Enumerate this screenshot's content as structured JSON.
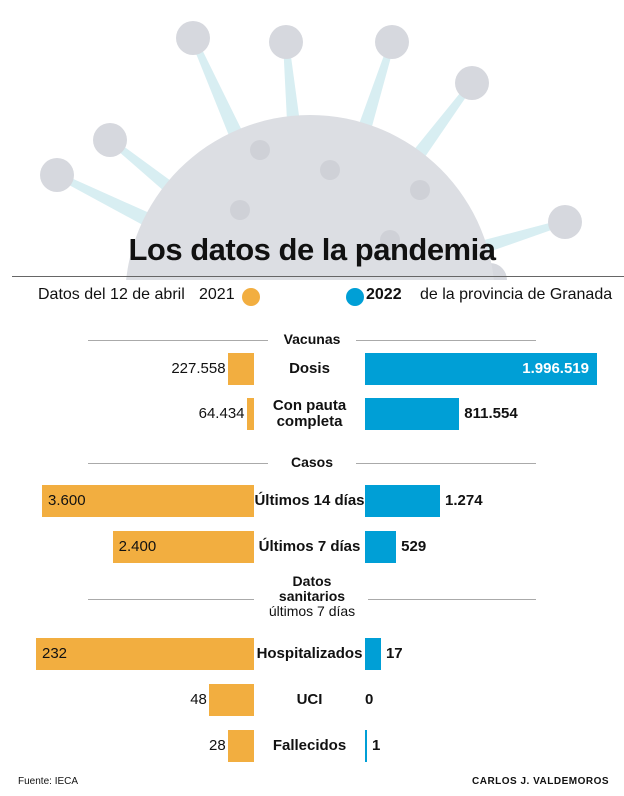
{
  "title": "Los datos de la pandemia",
  "legend": {
    "intro": "Datos del 12 de abril",
    "y2021": "2021",
    "y2022": "2022",
    "outro": "de la provincia de Granada"
  },
  "colors": {
    "y2021": "#f2ae40",
    "y2022": "#009fd6",
    "virus": "#dcdee3"
  },
  "chart_data": {
    "type": "bar",
    "title": "Los datos de la pandemia",
    "series_names": [
      "2021",
      "2022"
    ],
    "groups": [
      {
        "title": "Vacunas",
        "subtitle": "",
        "rows": [
          {
            "label": "Dosis",
            "v2021": 227558,
            "v2022": 1996519,
            "t2021": "227.558",
            "t2022": "1.996.519"
          },
          {
            "label": "Con pauta completa",
            "v2021": 64434,
            "v2022": 811554,
            "t2021": "64.434",
            "t2022": "811.554"
          }
        ]
      },
      {
        "title": "Casos",
        "subtitle": "",
        "rows": [
          {
            "label": "Últimos 14 días",
            "v2021": 3600,
            "v2022": 1274,
            "t2021": "3.600",
            "t2022": "1.274"
          },
          {
            "label": "Últimos 7 días",
            "v2021": 2400,
            "v2022": 529,
            "t2021": "2.400",
            "t2022": "529"
          }
        ]
      },
      {
        "title": "Datos sanitarios",
        "subtitle": "últimos 7 días",
        "rows": [
          {
            "label": "Hospitalizados",
            "v2021": 232,
            "v2022": 17,
            "t2021": "232",
            "t2022": "17"
          },
          {
            "label": "UCI",
            "v2021": 48,
            "v2022": 0,
            "t2021": "48",
            "t2022": "0"
          },
          {
            "label": "Fallecidos",
            "v2021": 28,
            "v2022": 1,
            "t2021": "28",
            "t2022": "1"
          }
        ]
      }
    ]
  },
  "footer": {
    "source": "Fuente: IECA",
    "author": "CARLOS J. VALDEMOROS"
  }
}
